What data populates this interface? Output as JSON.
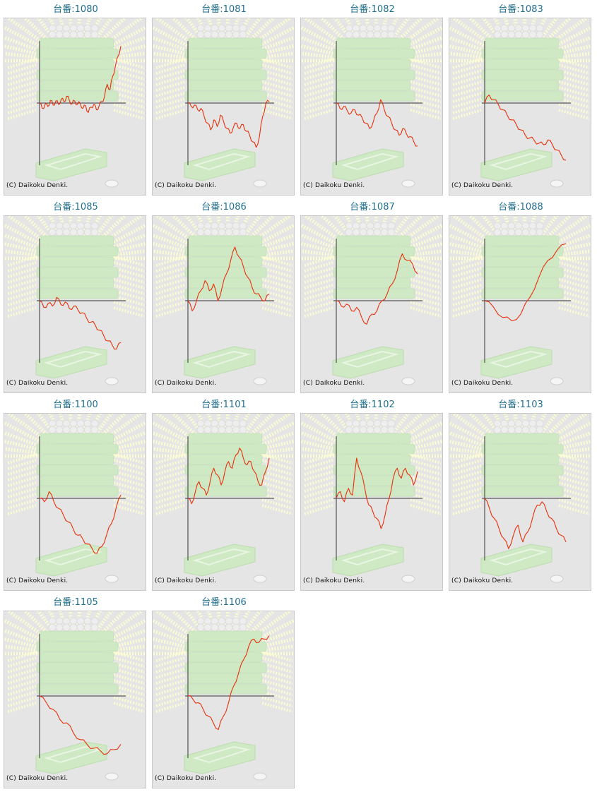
{
  "colors": {
    "link": "#1f6f8f",
    "card_bg": "#e5e5e5",
    "card_border": "#c8c8c8",
    "axis": "#333333",
    "line": "#e8300a",
    "artwork_green": "#cfe9c4",
    "artwork_rays": "#fbfbd5"
  },
  "graphs": [
    {
      "title": "台番:1080",
      "credit": "(C) Daikoku Denki.",
      "values": [
        0,
        -8,
        -2,
        -5,
        4,
        -3,
        3,
        -2,
        6,
        2,
        10,
        4,
        -1,
        3,
        -2,
        0,
        -8,
        -4,
        -14,
        -6,
        -2,
        -10,
        -4,
        2,
        10,
        28,
        20,
        40,
        55,
        70,
        85
      ]
    },
    {
      "title": "台番:1081",
      "credit": "(C) Daikoku Denki.",
      "values": [
        0,
        -5,
        -3,
        -10,
        -8,
        -20,
        -30,
        -40,
        -25,
        -35,
        -18,
        -28,
        -38,
        -45,
        -36,
        -30,
        -38,
        -32,
        -42,
        -48,
        -58,
        -66,
        -50,
        -20,
        0,
        2
      ]
    },
    {
      "title": "台番:1082",
      "credit": "(C) Daikoku Denki.",
      "values": [
        0,
        -8,
        -5,
        -12,
        -15,
        -10,
        -18,
        -22,
        -30,
        -38,
        -28,
        -15,
        5,
        -10,
        -20,
        -30,
        -40,
        -48,
        -38,
        -46,
        -50,
        -58,
        -64
      ]
    },
    {
      "title": "台番:1083",
      "credit": "(C) Daikoku Denki.",
      "values": [
        0,
        12,
        5,
        -2,
        -10,
        -18,
        -25,
        -32,
        -40,
        -48,
        -52,
        -56,
        -60,
        -62,
        -55,
        -62,
        -70,
        -78,
        -85
      ]
    },
    {
      "title": "台番:1085",
      "credit": "(C) Daikoku Denki.",
      "values": [
        0,
        -10,
        -4,
        -8,
        5,
        -6,
        -2,
        -12,
        -8,
        -14,
        -18,
        -26,
        -32,
        -36,
        -44,
        -52,
        -60,
        -66,
        -72,
        -62
      ]
    },
    {
      "title": "台番:1086",
      "credit": "(C) Daikoku Denki.",
      "values": [
        0,
        -15,
        0,
        15,
        30,
        15,
        25,
        0,
        20,
        40,
        60,
        80,
        65,
        50,
        35,
        20,
        10,
        5,
        0,
        10
      ]
    },
    {
      "title": "台番:1087",
      "credit": "(C) Daikoku Denki.",
      "values": [
        0,
        -8,
        -5,
        -15,
        -10,
        -25,
        -35,
        -20,
        -15,
        0,
        10,
        25,
        45,
        70,
        60,
        55,
        40
      ]
    },
    {
      "title": "台番:1088",
      "credit": "(C) Daikoku Denki.",
      "values": [
        0,
        -10,
        -25,
        -30,
        -20,
        5,
        35,
        60,
        75,
        85
      ]
    },
    {
      "title": "台番:1100",
      "credit": "(C) Daikoku Denki.",
      "values": [
        0,
        -5,
        10,
        -5,
        -15,
        -25,
        -35,
        -45,
        -55,
        -60,
        -68,
        -75,
        -82,
        -72,
        -55,
        -38,
        -15,
        5
      ]
    },
    {
      "title": "台番:1101",
      "credit": "(C) Daikoku Denki.",
      "values": [
        0,
        -8,
        10,
        25,
        15,
        5,
        25,
        45,
        35,
        20,
        40,
        55,
        45,
        65,
        75,
        60,
        50,
        55,
        40,
        25,
        20,
        40,
        60
      ]
    },
    {
      "title": "台番:1102",
      "credit": "(C) Daikoku Denki.",
      "values": [
        0,
        10,
        -5,
        15,
        5,
        60,
        40,
        15,
        -10,
        -20,
        -30,
        -45,
        -25,
        0,
        30,
        45,
        30,
        45,
        35,
        20,
        40
      ]
    },
    {
      "title": "台番:1103",
      "credit": "(C) Daikoku Denki.",
      "values": [
        0,
        -15,
        -30,
        -45,
        -60,
        -75,
        -55,
        -40,
        -65,
        -50,
        -30,
        -10,
        -5,
        -20,
        -30,
        -45,
        -55,
        -65
      ]
    },
    {
      "title": "台番:1105",
      "credit": "(C) Daikoku Denki.",
      "values": [
        0,
        -10,
        -20,
        -35,
        -40,
        -55,
        -65,
        -72,
        -78,
        -82,
        -86,
        -80,
        -72
      ]
    },
    {
      "title": "台番:1106",
      "credit": "(C) Daikoku Denki.",
      "values": [
        0,
        -5,
        -10,
        -20,
        -30,
        -40,
        -50,
        -30,
        -10,
        15,
        35,
        55,
        75,
        85,
        80,
        85,
        90
      ]
    }
  ]
}
